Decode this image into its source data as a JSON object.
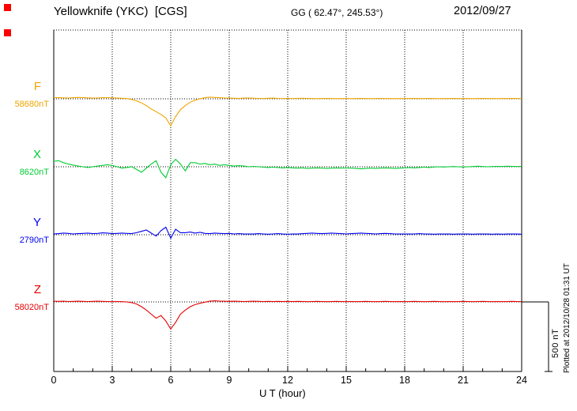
{
  "header": {
    "station_title": "Yellowknife (YKC)  [CGS]",
    "coords": "GG ( 62.47°, 245.53°)",
    "date": "2012/09/27"
  },
  "axis": {
    "xlabel": "U T (hour)",
    "tick_labels": [
      "0",
      "3",
      "6",
      "9",
      "12",
      "15",
      "18",
      "21",
      "24"
    ]
  },
  "scale_bar": {
    "label": "500 nT",
    "nT": 500
  },
  "plotted_at": "Plotted at 2012/10/28 01:31 UT",
  "chart_data": {
    "type": "line",
    "title": "Yellowknife (YKC) [CGS] magnetogram, 2012/09/27",
    "xlabel": "U T (hour)",
    "x_range": [
      0,
      24
    ],
    "x_step_hours": 0.25,
    "x_tick_interval_hours": 3,
    "grid": "dotted vertical lines every 3 hours; dotted horizontal baseline per component",
    "legend_position": "left",
    "scale_bar_nT": 500,
    "series": [
      {
        "name": "F",
        "baseline_label": "58680nT",
        "baseline_nT": 58680,
        "color": "#eea400",
        "offsets_nT": [
          8,
          9,
          7,
          6,
          8,
          10,
          9,
          7,
          5,
          6,
          8,
          9,
          7,
          5,
          4,
          2,
          -5,
          -15,
          -30,
          -50,
          -75,
          -95,
          -115,
          -140,
          -200,
          -130,
          -80,
          -50,
          -25,
          -10,
          0,
          8,
          12,
          10,
          8,
          6,
          5,
          4,
          3,
          5,
          6,
          4,
          3,
          2,
          4,
          5,
          3,
          2,
          3,
          2,
          3,
          4,
          3,
          2,
          1,
          2,
          3,
          2,
          1,
          2,
          2,
          1,
          2,
          3,
          2,
          1,
          2,
          3,
          2,
          2,
          1,
          2,
          2,
          2,
          3,
          2,
          2,
          3,
          2,
          1,
          2,
          2,
          3,
          2,
          2,
          2,
          1,
          2,
          3,
          2,
          2,
          1,
          2,
          2,
          3,
          2,
          2
        ]
      },
      {
        "name": "X",
        "baseline_label": "8620nT",
        "baseline_nT": 8620,
        "color": "#00cc33",
        "offsets_nT": [
          40,
          45,
          30,
          20,
          12,
          5,
          0,
          -5,
          0,
          5,
          10,
          15,
          10,
          0,
          -10,
          -5,
          0,
          -20,
          -40,
          -10,
          20,
          45,
          -40,
          -80,
          15,
          55,
          20,
          -30,
          30,
          30,
          20,
          25,
          15,
          20,
          10,
          15,
          10,
          5,
          8,
          5,
          0,
          3,
          0,
          -3,
          -5,
          -3,
          -6,
          -8,
          -5,
          -8,
          -10,
          -8,
          -12,
          -10,
          -8,
          -10,
          -12,
          -10,
          -8,
          -10,
          -9,
          -10,
          -12,
          -15,
          -12,
          -10,
          -12,
          -10,
          -8,
          -10,
          -12,
          -10,
          -8,
          -6,
          -8,
          -5,
          -3,
          -5,
          -2,
          0,
          -2,
          0,
          2,
          0,
          -2,
          0,
          2,
          4,
          2,
          0,
          2,
          3,
          2,
          4,
          3,
          2,
          3
        ]
      },
      {
        "name": "Y",
        "baseline_label": "2790nT",
        "baseline_nT": 2790,
        "color": "#0000ee",
        "offsets_nT": [
          5,
          8,
          12,
          10,
          6,
          8,
          10,
          12,
          8,
          10,
          14,
          12,
          8,
          10,
          12,
          10,
          8,
          15,
          25,
          35,
          12,
          -10,
          30,
          55,
          -25,
          40,
          15,
          15,
          20,
          12,
          18,
          10,
          8,
          12,
          10,
          8,
          10,
          6,
          8,
          5,
          6,
          5,
          8,
          6,
          4,
          6,
          8,
          5,
          4,
          6,
          5,
          8,
          10,
          12,
          10,
          8,
          10,
          12,
          10,
          8,
          6,
          8,
          10,
          12,
          10,
          8,
          6,
          8,
          10,
          8,
          6,
          5,
          6,
          5,
          6,
          8,
          6,
          5,
          4,
          5,
          6,
          5,
          4,
          5,
          6,
          5,
          4,
          5,
          6,
          5,
          4,
          5,
          4,
          5,
          6,
          5,
          4
        ]
      },
      {
        "name": "Z",
        "baseline_label": "58020nT",
        "baseline_nT": 58020,
        "color": "#e60000",
        "offsets_nT": [
          5,
          4,
          5,
          3,
          4,
          5,
          4,
          3,
          4,
          5,
          4,
          3,
          2,
          3,
          2,
          0,
          -5,
          -15,
          -35,
          -60,
          -90,
          -120,
          -100,
          -140,
          -200,
          -150,
          -90,
          -60,
          -35,
          -20,
          -10,
          -2,
          5,
          8,
          6,
          5,
          4,
          5,
          4,
          3,
          4,
          5,
          4,
          3,
          4,
          3,
          4,
          3,
          4,
          3,
          4,
          3,
          2,
          3,
          4,
          3,
          2,
          3,
          4,
          3,
          2,
          3,
          2,
          3,
          4,
          3,
          2,
          3,
          4,
          3,
          2,
          3,
          2,
          3,
          4,
          3,
          2,
          3,
          4,
          3,
          2,
          3,
          2,
          3,
          4,
          3,
          2,
          3,
          4,
          3,
          2,
          3,
          2,
          3,
          4,
          3,
          2
        ]
      }
    ]
  }
}
